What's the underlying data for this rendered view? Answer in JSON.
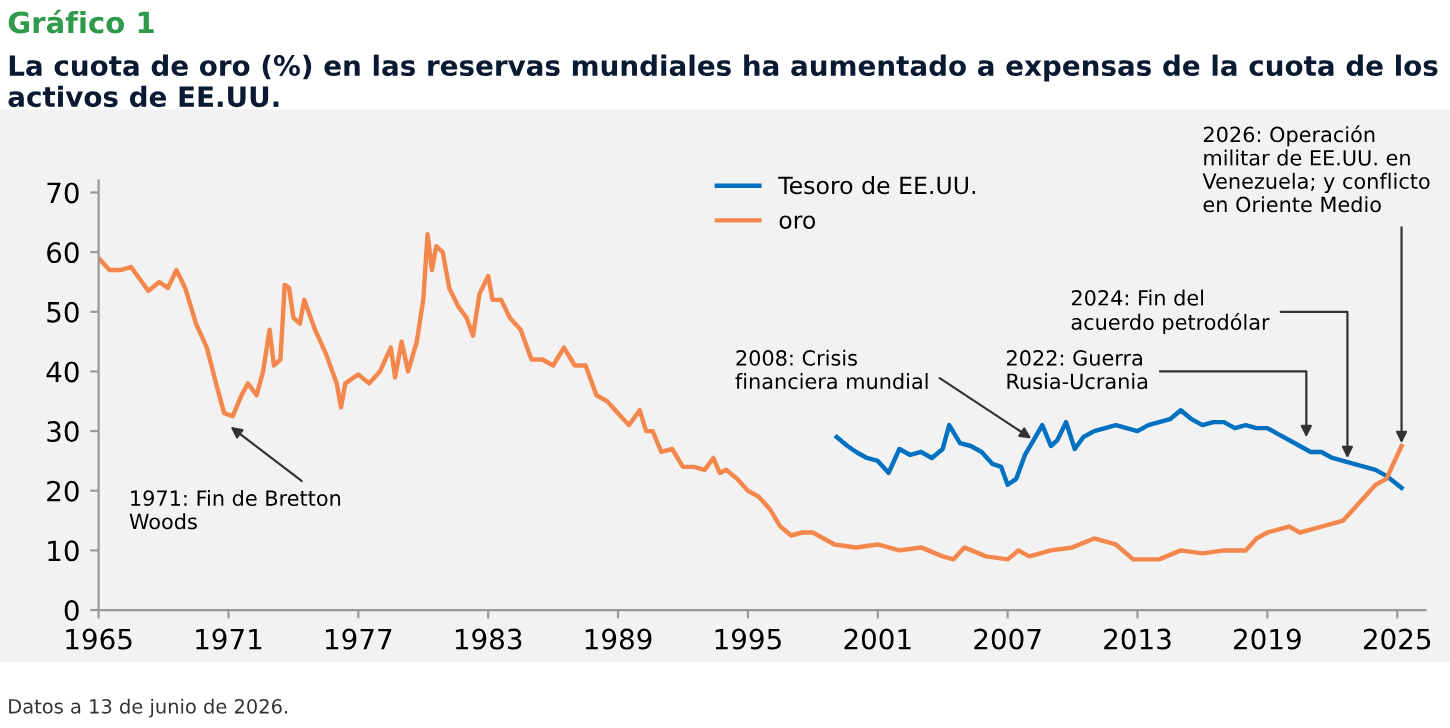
{
  "chart_data": {
    "type": "line",
    "title": "Gráfico 1",
    "subtitle": "La cuota de oro (%) en las reservas mundiales ha aumentado a expensas de la cuota de los activos de EE.UU.",
    "series": [
      {
        "name": "Tesoro de EE.UU.",
        "color": "#0070c0",
        "x": [
          1999.1,
          1999.6,
          2000,
          2000.5,
          2001,
          2001.5,
          2002,
          2002.5,
          2003,
          2003.5,
          2004,
          2004.3,
          2004.8,
          2005.3,
          2005.8,
          2006.3,
          2006.7,
          2007,
          2007.4,
          2007.8,
          2008.2,
          2008.6,
          2009,
          2009.3,
          2009.7,
          2010.1,
          2010.5,
          2011,
          2011.5,
          2012,
          2012.5,
          2013,
          2013.5,
          2014,
          2014.5,
          2015,
          2015.5,
          2016,
          2016.5,
          2017,
          2017.5,
          2018,
          2018.5,
          2019,
          2019.5,
          2020,
          2020.5,
          2021,
          2021.5,
          2022,
          2022.5,
          2023,
          2023.5,
          2024,
          2024.5,
          2025.2
        ],
        "values": [
          29,
          27.5,
          26.5,
          25.5,
          25,
          23,
          27,
          26,
          26.5,
          25.5,
          27,
          31,
          28,
          27.5,
          26.5,
          24.5,
          24,
          21,
          22,
          26,
          28.5,
          31,
          27.5,
          28.5,
          31.5,
          27,
          29,
          30,
          30.5,
          31,
          30.5,
          30,
          31,
          31.5,
          32,
          33.5,
          32,
          31,
          31.5,
          31.5,
          30.5,
          31,
          30.5,
          30.5,
          29.5,
          28.5,
          27.5,
          26.5,
          26.5,
          25.5,
          25,
          24.5,
          24,
          23.5,
          22.5,
          20.5
        ]
      },
      {
        "name": "oro",
        "color": "#f4874b",
        "x": [
          1965,
          1965.5,
          1966,
          1966.5,
          1967,
          1967.3,
          1967.8,
          1968.2,
          1968.6,
          1969,
          1969.5,
          1970,
          1970.5,
          1970.8,
          1971.2,
          1971.6,
          1971.9,
          1972.3,
          1972.6,
          1972.9,
          1973.1,
          1973.4,
          1973.6,
          1973.8,
          1974,
          1974.3,
          1974.5,
          1975,
          1975.5,
          1976,
          1976.2,
          1976.4,
          1977,
          1977.5,
          1978,
          1978.5,
          1978.7,
          1979,
          1979.3,
          1979.7,
          1980,
          1980.2,
          1980.4,
          1980.6,
          1980.9,
          1981.2,
          1981.6,
          1982,
          1982.3,
          1982.6,
          1983,
          1983.2,
          1983.6,
          1984,
          1984.5,
          1985,
          1985.5,
          1986,
          1986.5,
          1987,
          1987.5,
          1988,
          1988.5,
          1989,
          1989.5,
          1990,
          1990.3,
          1990.6,
          1991,
          1991.5,
          1992,
          1992.5,
          1993,
          1993.4,
          1993.7,
          1994,
          1994.5,
          1995,
          1995.5,
          1996,
          1996.5,
          1997,
          1997.5,
          1998,
          1998.5,
          1999,
          2000,
          2001,
          2002,
          2003,
          2004,
          2004.5,
          2005,
          2006,
          2007,
          2007.5,
          2008,
          2009,
          2010,
          2011,
          2012,
          2012.8,
          2013.5,
          2014,
          2015,
          2016,
          2017,
          2018,
          2018.5,
          2019,
          2020,
          2020.5,
          2021,
          2022,
          2022.5,
          2023,
          2023.5,
          2024,
          2024.5,
          2025.2
        ],
        "values": [
          59,
          57,
          57,
          57.5,
          55,
          53.5,
          55,
          54,
          57,
          54,
          48,
          44,
          37,
          33,
          32.5,
          36,
          38,
          36,
          40,
          47,
          41,
          42,
          54.5,
          54,
          49,
          48,
          52,
          47,
          43,
          38,
          34,
          38,
          39.5,
          38,
          40,
          44,
          39,
          45,
          40,
          45,
          52,
          63,
          57,
          61,
          60,
          54,
          51,
          49,
          46,
          53,
          56,
          52,
          52,
          49,
          47,
          42,
          42,
          41,
          44,
          41,
          41,
          36,
          35,
          33,
          31,
          33.5,
          30,
          30,
          26.5,
          27,
          24,
          24,
          23.5,
          25.5,
          23,
          23.5,
          22,
          20,
          19,
          17,
          14,
          12.5,
          13,
          13,
          12,
          11,
          10.5,
          11,
          10,
          10.5,
          9,
          8.5,
          10.5,
          9,
          8.5,
          10,
          9,
          10,
          10.5,
          12,
          11,
          8.5,
          8.5,
          8.5,
          10,
          9.5,
          10,
          10,
          12,
          13,
          14,
          13,
          13.5,
          14.5,
          15,
          17,
          19,
          21,
          22,
          27.5
        ]
      }
    ],
    "xlim": [
      1965,
      2026.3
    ],
    "xticks": [
      1965,
      1971,
      1977,
      1983,
      1989,
      1995,
      2001,
      2007,
      2013,
      2019,
      2025
    ],
    "ylim": [
      0,
      72
    ],
    "yticks": [
      0,
      10,
      20,
      30,
      40,
      50,
      60,
      70
    ],
    "grid": false,
    "legend": "top",
    "annotations": [
      {
        "text": "1971: Fin de Bretton\nWoods",
        "x": 1971,
        "y": 31
      },
      {
        "text": "2008: Crisis\nfinanciera mundial",
        "x": 2008.2,
        "y": 28.5
      },
      {
        "text": "2022: Guerra\nRusia-Ucrania",
        "x": 2020.8,
        "y": 28.5
      },
      {
        "text": "2024: Fin del\nacuerdo petrodólar",
        "x": 2022.7,
        "y": 25
      },
      {
        "text": "2026: Operación\nmilitar de EE.UU. en\nVenezuela; y conflicto\nen Oriente Medio",
        "x": 2025.2,
        "y": 27.5
      },
      "Datos a 13 de junio de 2026."
    ]
  }
}
